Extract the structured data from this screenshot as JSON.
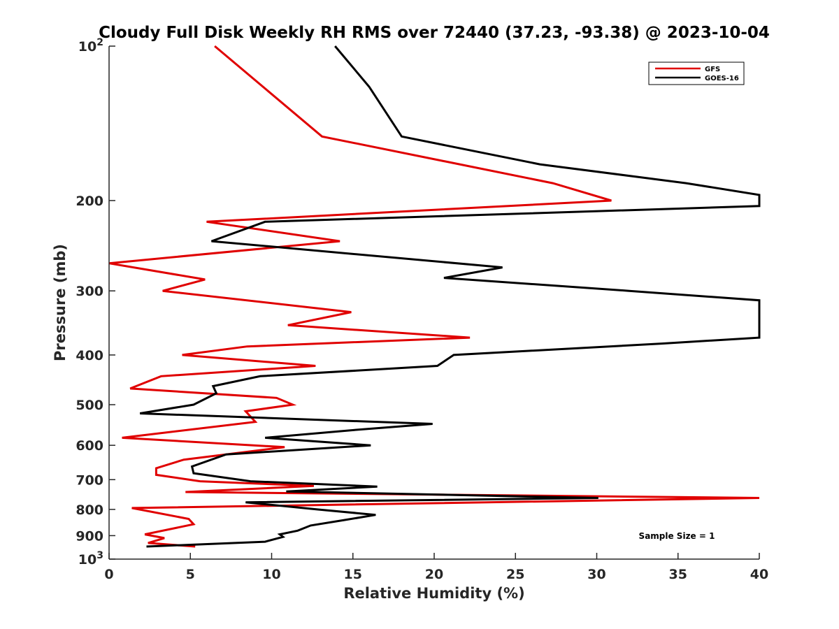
{
  "chart_data": {
    "type": "line",
    "title": "Cloudy Full Disk Weekly RH RMS over 72440 (37.23, -93.38) @ 2023-10-04",
    "xlabel": "Relative Humidity (%)",
    "ylabel": "Pressure (mb)",
    "xlim": [
      0,
      40
    ],
    "ylim": [
      100,
      1000
    ],
    "y_scale": "log",
    "y_reversed": true,
    "x_ticks": [
      "0",
      "5",
      "10",
      "15",
      "20",
      "25",
      "30",
      "35",
      "40"
    ],
    "y_ticks": [
      {
        "value": 100,
        "base": "10",
        "exp": "2"
      },
      {
        "value": 200,
        "label": "200"
      },
      {
        "value": 300,
        "label": "300"
      },
      {
        "value": 400,
        "label": "400"
      },
      {
        "value": 500,
        "label": "500"
      },
      {
        "value": 600,
        "label": "600"
      },
      {
        "value": 700,
        "label": "700"
      },
      {
        "value": 800,
        "label": "800"
      },
      {
        "value": 900,
        "label": "900"
      },
      {
        "value": 1000,
        "base": "10",
        "exp": "3"
      }
    ],
    "legend_position": "top-right",
    "annotation": "Sample Size = 1",
    "series": [
      {
        "name": "GFS",
        "color": "#e00000",
        "points": [
          [
            6.5,
            100
          ],
          [
            13.1,
            150
          ],
          [
            27.3,
            185
          ],
          [
            30.9,
            200
          ],
          [
            6.0,
            220
          ],
          [
            14.2,
            240
          ],
          [
            0.0,
            265
          ],
          [
            5.9,
            285
          ],
          [
            3.3,
            300
          ],
          [
            14.9,
            330
          ],
          [
            11.0,
            350
          ],
          [
            22.2,
            370
          ],
          [
            8.5,
            385
          ],
          [
            4.5,
            400
          ],
          [
            12.7,
            420
          ],
          [
            3.2,
            440
          ],
          [
            1.3,
            465
          ],
          [
            10.3,
            485
          ],
          [
            11.3,
            500
          ],
          [
            8.4,
            515
          ],
          [
            9.0,
            540
          ],
          [
            0.8,
            580
          ],
          [
            10.8,
            605
          ],
          [
            4.6,
            640
          ],
          [
            2.9,
            665
          ],
          [
            2.9,
            685
          ],
          [
            5.6,
            705
          ],
          [
            12.6,
            720
          ],
          [
            4.7,
            740
          ],
          [
            40.0,
            760
          ],
          [
            1.4,
            795
          ],
          [
            4.9,
            835
          ],
          [
            5.2,
            855
          ],
          [
            2.2,
            895
          ],
          [
            3.4,
            910
          ],
          [
            2.4,
            930
          ],
          [
            5.3,
            945
          ]
        ]
      },
      {
        "name": "GOES-16",
        "color": "#000000",
        "points": [
          [
            13.9,
            100
          ],
          [
            16.0,
            120
          ],
          [
            18.0,
            150
          ],
          [
            26.5,
            170
          ],
          [
            35.5,
            185
          ],
          [
            40.0,
            195
          ],
          [
            40.0,
            205
          ],
          [
            9.6,
            220
          ],
          [
            6.3,
            240
          ],
          [
            24.2,
            270
          ],
          [
            20.6,
            283
          ],
          [
            32.0,
            300
          ],
          [
            40.0,
            313
          ],
          [
            40.0,
            370
          ],
          [
            34.0,
            380
          ],
          [
            21.2,
            400
          ],
          [
            20.2,
            420
          ],
          [
            9.3,
            440
          ],
          [
            6.4,
            460
          ],
          [
            6.6,
            475
          ],
          [
            5.2,
            500
          ],
          [
            1.9,
            520
          ],
          [
            19.9,
            545
          ],
          [
            15.1,
            560
          ],
          [
            9.6,
            580
          ],
          [
            16.1,
            600
          ],
          [
            7.2,
            625
          ],
          [
            5.1,
            660
          ],
          [
            5.2,
            680
          ],
          [
            8.7,
            705
          ],
          [
            16.5,
            722
          ],
          [
            10.9,
            738
          ],
          [
            30.1,
            760
          ],
          [
            8.4,
            775
          ],
          [
            12.8,
            800
          ],
          [
            16.4,
            820
          ],
          [
            14.4,
            840
          ],
          [
            12.4,
            860
          ],
          [
            11.6,
            880
          ],
          [
            10.5,
            895
          ],
          [
            10.7,
            905
          ],
          [
            9.6,
            925
          ],
          [
            2.3,
            945
          ]
        ]
      }
    ]
  }
}
